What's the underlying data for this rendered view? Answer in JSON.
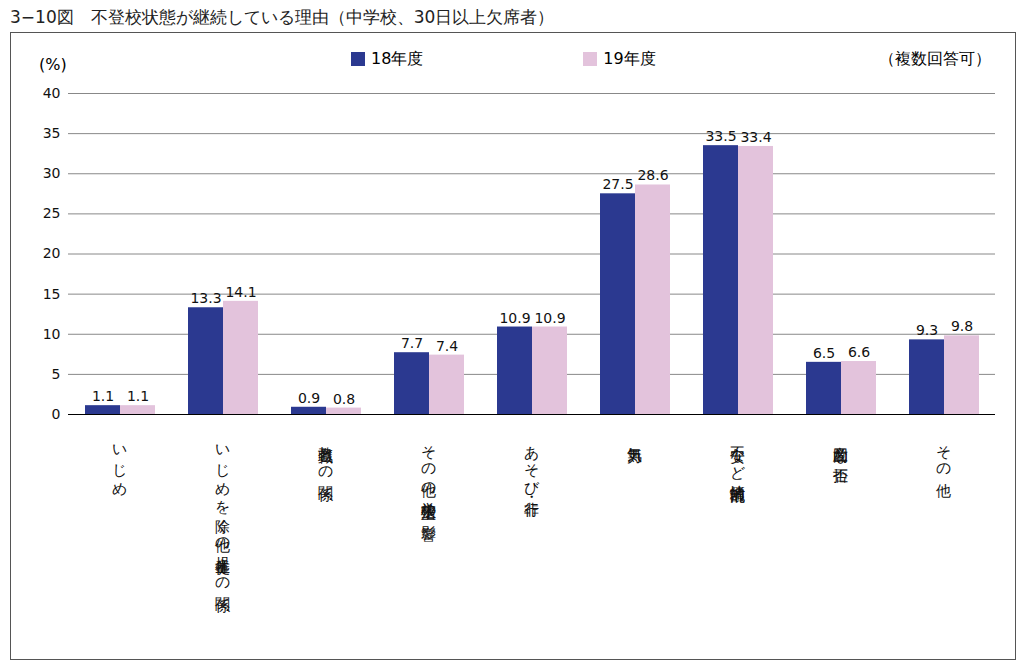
{
  "chart_data": {
    "type": "bar",
    "title": "3−10図　不登校状態が継続している理由（中学校、30日以上欠席者）",
    "ylabel": "(%)",
    "annotations": [
      "（複数回答可）"
    ],
    "categories": [
      "いじめ",
      "いじめを除く他の児童生徒との関係",
      "教職員との関係",
      "その他の学校生活上の影響",
      "あそび・非行",
      "無気力",
      "不安など情緒的混乱",
      "意図的な拒否",
      "その他"
    ],
    "series": [
      {
        "name": "18年度",
        "color": "#2b3990",
        "values": [
          1.1,
          13.3,
          0.9,
          7.7,
          10.9,
          27.5,
          33.5,
          6.5,
          9.3
        ]
      },
      {
        "name": "19年度",
        "color": "#e3c3dc",
        "values": [
          1.1,
          14.1,
          0.8,
          7.4,
          10.9,
          28.6,
          33.4,
          6.6,
          9.8
        ]
      }
    ],
    "ylim": [
      0,
      40
    ],
    "yticks": [
      0,
      5,
      10,
      15,
      20,
      25,
      30,
      35,
      40
    ],
    "grid": true,
    "data_labels": true,
    "legend": "top"
  }
}
